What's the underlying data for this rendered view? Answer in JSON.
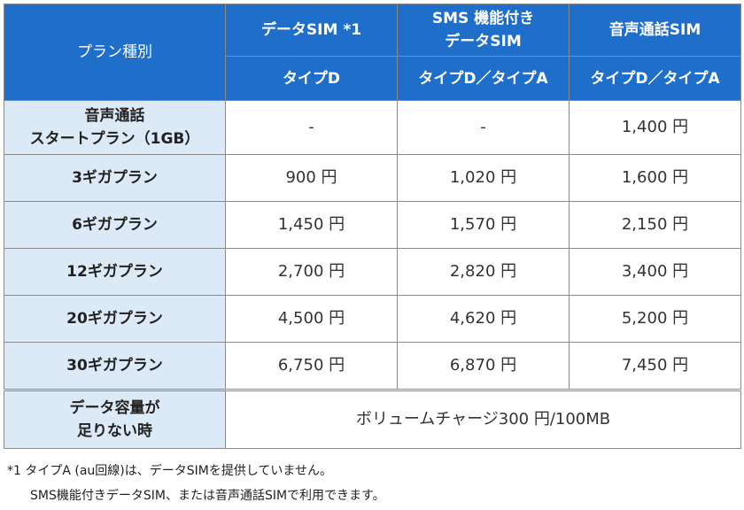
{
  "header": {
    "corner_label": "プラン種別",
    "columns": [
      {
        "title_line1": "データSIM *1",
        "title_line2": "",
        "type": "タイプD"
      },
      {
        "title_line1": "SMS 機能付き",
        "title_line2": "データSIM",
        "type": "タイプD／タイプA"
      },
      {
        "title_line1": "音声通話SIM",
        "title_line2": "",
        "type": "タイプD／タイプA"
      }
    ]
  },
  "rows": [
    {
      "label_line1": "音声通話",
      "label_line2": "スタートプラン（1GB）",
      "values": [
        "-",
        "-",
        "1,400 円"
      ]
    },
    {
      "label_line1": "3ギガプラン",
      "label_line2": "",
      "values": [
        "900 円",
        "1,020 円",
        "1,600 円"
      ]
    },
    {
      "label_line1": "6ギガプラン",
      "label_line2": "",
      "values": [
        "1,450 円",
        "1,570 円",
        "2,150 円"
      ]
    },
    {
      "label_line1": "12ギガプラン",
      "label_line2": "",
      "values": [
        "2,700 円",
        "2,820 円",
        "3,400 円"
      ]
    },
    {
      "label_line1": "20ギガプラン",
      "label_line2": "",
      "values": [
        "4,500 円",
        "4,620 円",
        "5,200 円"
      ]
    },
    {
      "label_line1": "30ギガプラン",
      "label_line2": "",
      "values": [
        "6,750 円",
        "6,870 円",
        "7,450 円"
      ]
    }
  ],
  "extra_row": {
    "label_line1": "データ容量が",
    "label_line2": "足りない時",
    "value": "ボリュームチャージ300 円/100MB"
  },
  "notes": {
    "line1": "*1 タイプA (au回線)は、データSIMを提供していません。",
    "line2": "SMS機能付きデータSIM、または音声通話SIMで利用できます。"
  },
  "colors": {
    "header_bg": "#1f6ec9",
    "label_bg": "#dce9f7",
    "border": "#8a8a8a"
  }
}
